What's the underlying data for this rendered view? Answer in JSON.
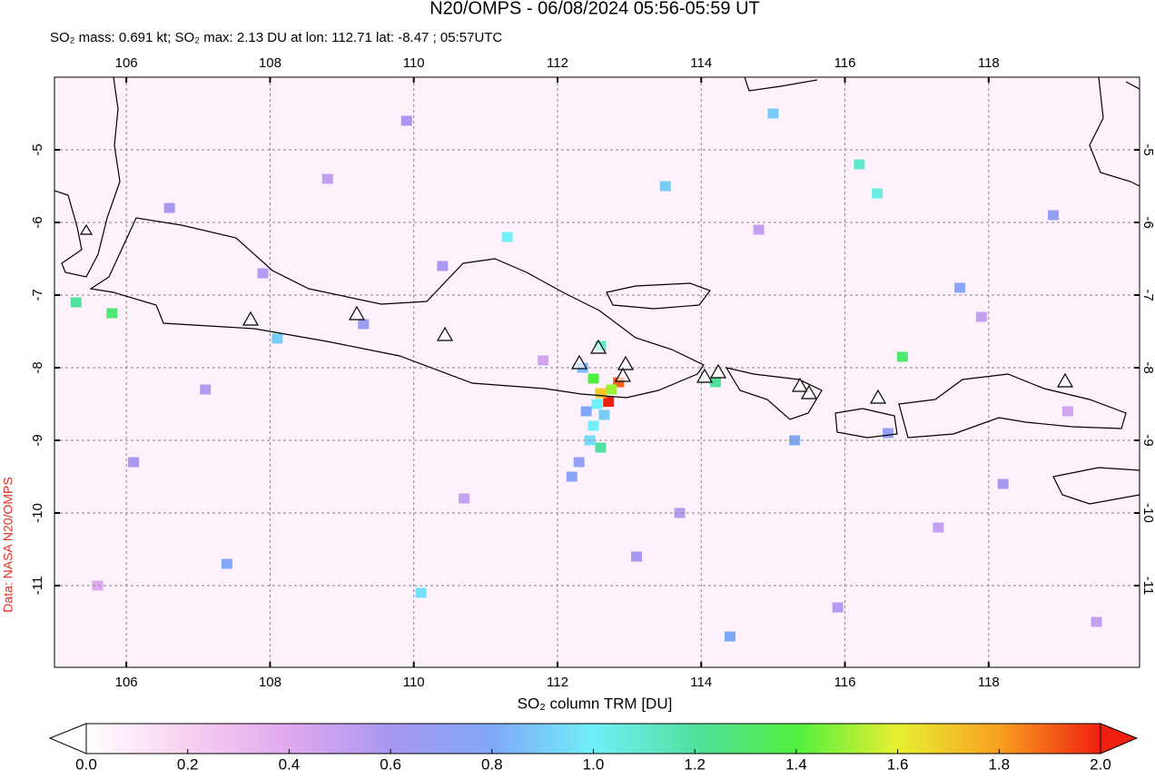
{
  "chart_data": {
    "type": "map",
    "title": "N20/OMPS - 06/08/2024 05:56-05:59 UT",
    "subtitle": "SO₂ mass: 0.691 kt; SO₂ max: 2.13 DU at lon: 112.71 lat: -8.47 ; 05:57UTC",
    "source": "Data: NASA N20/OMPS",
    "colorbar_label": "SO₂ column TRM [DU]",
    "xlim": [
      105,
      120.1
    ],
    "ylim": [
      -12.125,
      -4
    ],
    "xticks": [
      106,
      108,
      110,
      112,
      114,
      116,
      118
    ],
    "yticks": [
      -5,
      -6,
      -7,
      -8,
      -9,
      -10,
      -11
    ],
    "grid": true,
    "clim": [
      0,
      2
    ],
    "cticks": [
      {
        "value": 0,
        "label": "0.0"
      },
      {
        "value": 0.2,
        "label": "0.2"
      },
      {
        "value": 0.4,
        "label": "0.4"
      },
      {
        "value": 0.6,
        "label": "0.6"
      },
      {
        "value": 0.8,
        "label": "0.8"
      },
      {
        "value": 1,
        "label": "1.0"
      },
      {
        "value": 1.2,
        "label": "1.2"
      },
      {
        "value": 1.4,
        "label": "1.4"
      },
      {
        "value": 1.6,
        "label": "1.6"
      },
      {
        "value": 1.8,
        "label": "1.8"
      },
      {
        "value": 2,
        "label": "2.0"
      }
    ],
    "x": [
      112.71,
      112.85,
      112.6,
      112.5,
      112.75,
      112.55,
      112.65,
      112.4,
      112.5,
      112.45,
      112.6,
      112.3,
      112.35,
      112.6,
      112.2,
      105.3,
      105.8,
      116.8,
      116.2,
      116.45,
      108.1,
      110.1,
      111.3,
      113.5,
      114.2,
      115.3,
      117.6,
      118.9,
      106.6,
      107.9,
      109.3,
      110.7,
      113.1,
      115.9,
      117.3,
      119.1,
      106.1,
      107.4,
      108.8,
      110.4,
      111.8,
      113.7,
      114.8,
      116.6,
      118.2,
      119.5,
      105.6,
      107.1,
      109.9,
      114.4,
      117.9,
      115.0
    ],
    "y": [
      -8.47,
      -8.2,
      -8.35,
      -8.15,
      -8.3,
      -8.5,
      -8.65,
      -8.6,
      -8.8,
      -9.0,
      -9.1,
      -9.3,
      -8.0,
      -7.7,
      -9.5,
      -7.1,
      -7.25,
      -7.85,
      -5.2,
      -5.6,
      -7.6,
      -11.1,
      -6.2,
      -5.5,
      -8.2,
      -9.0,
      -6.9,
      -5.9,
      -5.8,
      -6.7,
      -7.4,
      -9.8,
      -10.6,
      -11.3,
      -10.2,
      -8.6,
      -9.3,
      -10.7,
      -5.4,
      -6.6,
      -7.9,
      -10.0,
      -6.1,
      -8.9,
      -9.6,
      -11.5,
      -11.0,
      -8.3,
      -4.6,
      -11.7,
      -7.3,
      -4.5
    ],
    "values": [
      2.13,
      1.9,
      1.7,
      1.4,
      1.5,
      1.0,
      0.9,
      0.8,
      1.0,
      0.95,
      1.2,
      0.7,
      0.85,
      1.1,
      0.75,
      1.2,
      1.3,
      1.3,
      1.1,
      1.05,
      0.9,
      0.95,
      1.0,
      0.9,
      1.2,
      0.8,
      0.75,
      0.7,
      0.6,
      0.55,
      0.65,
      0.5,
      0.6,
      0.55,
      0.5,
      0.45,
      0.6,
      0.8,
      0.5,
      0.6,
      0.45,
      0.55,
      0.5,
      0.7,
      0.6,
      0.5,
      0.4,
      0.55,
      0.6,
      0.8,
      0.5,
      0.9
    ]
  }
}
